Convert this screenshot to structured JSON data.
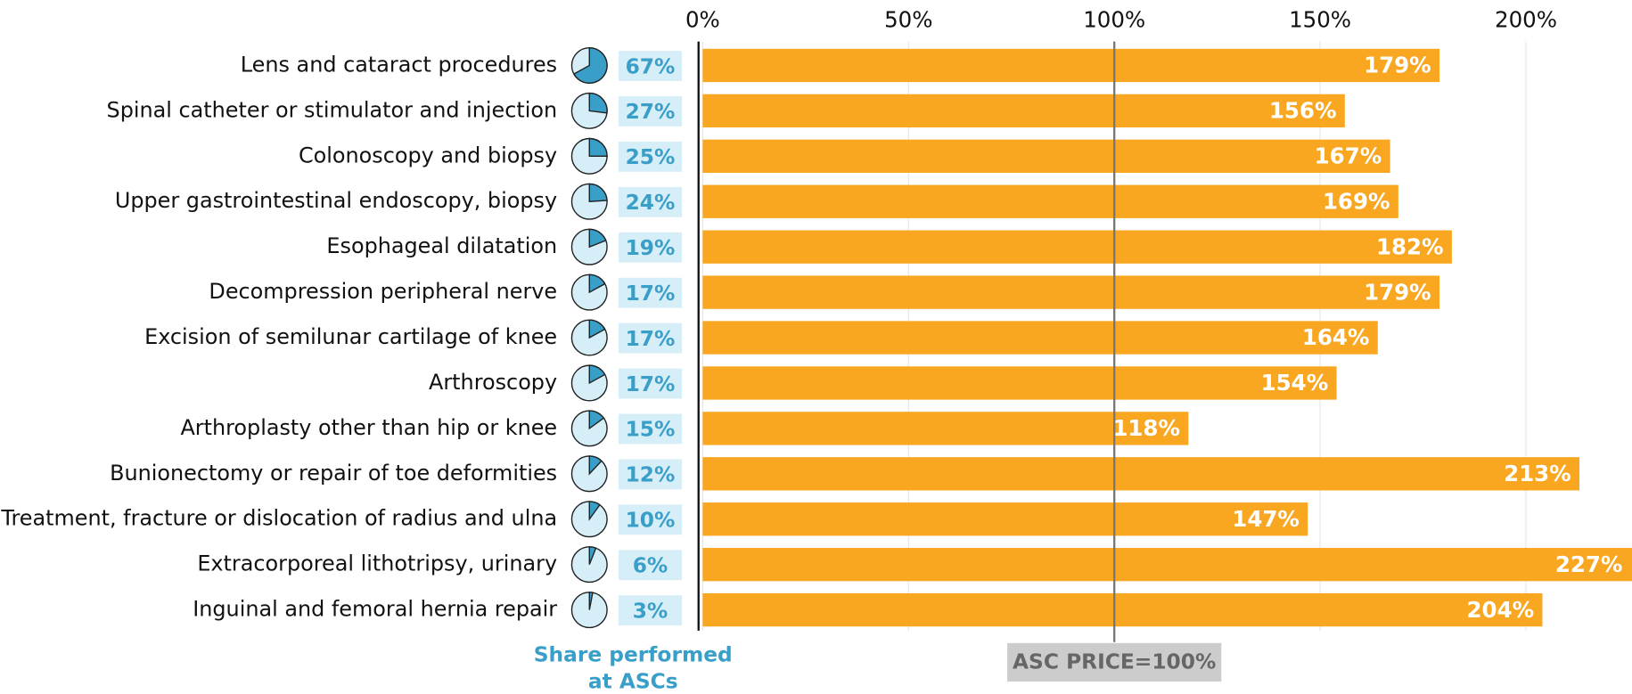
{
  "chart_data": {
    "type": "bar",
    "orientation": "horizontal",
    "categories": [
      "Lens and cataract procedures",
      "Spinal catheter or stimulator and injection",
      "Colonoscopy and biopsy",
      "Upper gastrointestinal endoscopy, biopsy",
      "Esophageal dilatation",
      "Decompression peripheral nerve",
      "Excision of semilunar cartilage of knee",
      "Arthroscopy",
      "Arthroplasty other than hip or knee",
      "Bunionectomy or repair of toe deformities",
      "Treatment, fracture or dislocation of radius and ulna",
      "Extracorporeal lithotripsy, urinary",
      "Inguinal and femoral hernia repair"
    ],
    "values": [
      179,
      156,
      167,
      169,
      182,
      179,
      164,
      154,
      118,
      213,
      147,
      227,
      204
    ],
    "value_labels": [
      "179%",
      "156%",
      "167%",
      "169%",
      "182%",
      "179%",
      "164%",
      "154%",
      "118%",
      "213%",
      "147%",
      "227%",
      "204%"
    ],
    "color": "#f9a620",
    "xlim": [
      0,
      225
    ],
    "xticks": [
      {
        "value": 0,
        "label": "0%"
      },
      {
        "value": 50,
        "label": "50%"
      },
      {
        "value": 100,
        "label": "100%"
      },
      {
        "value": 150,
        "label": "150%"
      },
      {
        "value": 200,
        "label": "200%"
      }
    ],
    "grid": true,
    "reference_line": {
      "value": 100,
      "label": "ASC PRICE=100%"
    },
    "share": {
      "label": [
        "Share performed",
        "at ASCs"
      ],
      "color": "#3a9fc8",
      "values": [
        67,
        27,
        25,
        24,
        19,
        17,
        17,
        17,
        15,
        12,
        10,
        6,
        3
      ],
      "value_labels": [
        "67%",
        "27%",
        "25%",
        "24%",
        "19%",
        "17%",
        "17%",
        "17%",
        "15%",
        "12%",
        "10%",
        "6%",
        "3%"
      ]
    }
  }
}
